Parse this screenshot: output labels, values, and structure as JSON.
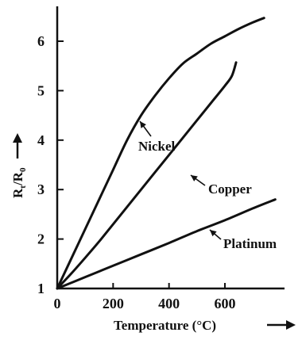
{
  "chart_data": {
    "type": "line",
    "title": "",
    "xlabel": "Temperature (°C)",
    "ylabel_main": "R",
    "ylabel_sub1": "t",
    "ylabel_sep": "/R",
    "ylabel_sub2": "0",
    "xlim": [
      0,
      800
    ],
    "ylim": [
      1,
      6.75
    ],
    "x_ticks": [
      0,
      200,
      400,
      600
    ],
    "x_tick_labels": [
      "0",
      "200",
      "400",
      "600"
    ],
    "y_ticks": [
      1,
      2,
      3,
      4,
      5,
      6
    ],
    "y_tick_labels": [
      "1",
      "2",
      "3",
      "4",
      "5",
      "6"
    ],
    "grid": false,
    "legend": "none",
    "series": [
      {
        "name": "Nickel",
        "x": [
          0,
          50,
          100,
          150,
          200,
          250,
          300,
          350,
          400,
          450,
          500,
          550,
          600,
          650,
          700,
          740
        ],
        "y": [
          1.0,
          1.6,
          2.2,
          2.8,
          3.4,
          4.0,
          4.5,
          4.9,
          5.25,
          5.55,
          5.75,
          5.95,
          6.1,
          6.25,
          6.38,
          6.47
        ]
      },
      {
        "name": "Copper",
        "x": [
          0,
          50,
          100,
          150,
          200,
          250,
          300,
          350,
          400,
          450,
          500,
          550,
          600,
          625,
          640
        ],
        "y": [
          1.0,
          1.3,
          1.62,
          1.95,
          2.3,
          2.65,
          3.0,
          3.35,
          3.7,
          4.05,
          4.4,
          4.75,
          5.1,
          5.3,
          5.57
        ]
      },
      {
        "name": "Platinum",
        "x": [
          0,
          100,
          200,
          300,
          400,
          500,
          600,
          700,
          780
        ],
        "y": [
          1.0,
          1.23,
          1.46,
          1.69,
          1.92,
          2.16,
          2.38,
          2.62,
          2.8
        ]
      }
    ],
    "annotations": [
      {
        "label": "Nickel",
        "point_x": 290,
        "point_y": 4.5
      },
      {
        "label": "Copper",
        "point_x": 470,
        "point_y": 3.5
      },
      {
        "label": "Platinum",
        "point_x": 550,
        "point_y": 2.28
      }
    ]
  },
  "styles": {
    "line_color": "#111111",
    "background": "#ffffff"
  }
}
